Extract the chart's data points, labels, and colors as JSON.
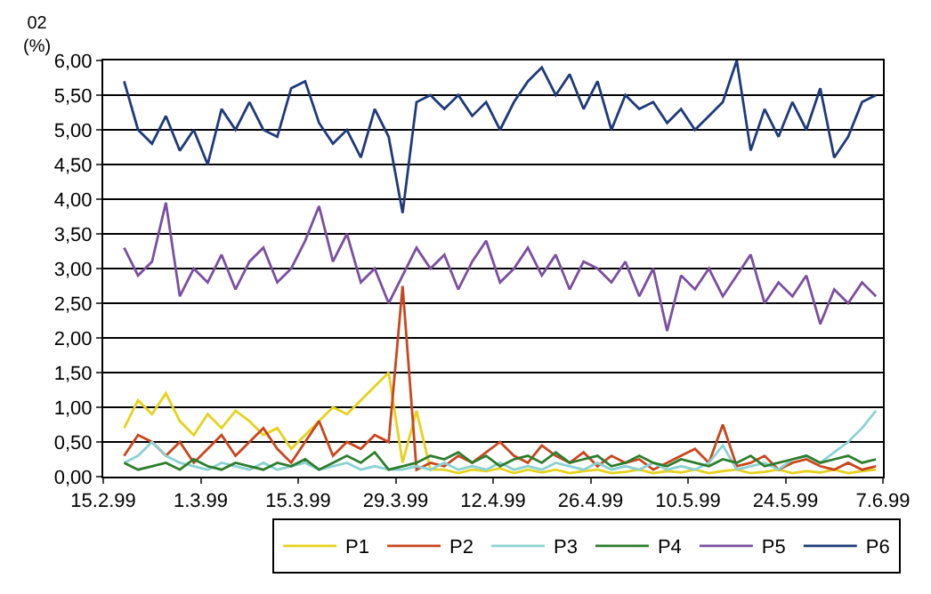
{
  "chart_data": {
    "type": "line",
    "ylabel": "02 (%)",
    "x": [
      "1999-02-18",
      "1999-02-20",
      "1999-02-22",
      "1999-02-24",
      "1999-02-26",
      "1999-02-28",
      "1999-03-02",
      "1999-03-04",
      "1999-03-06",
      "1999-03-08",
      "1999-03-10",
      "1999-03-12",
      "1999-03-14",
      "1999-03-16",
      "1999-03-18",
      "1999-03-20",
      "1999-03-22",
      "1999-03-24",
      "1999-03-26",
      "1999-03-28",
      "1999-03-30",
      "1999-04-01",
      "1999-04-03",
      "1999-04-05",
      "1999-04-07",
      "1999-04-09",
      "1999-04-11",
      "1999-04-13",
      "1999-04-15",
      "1999-04-17",
      "1999-04-19",
      "1999-04-21",
      "1999-04-23",
      "1999-04-25",
      "1999-04-27",
      "1999-04-29",
      "1999-05-01",
      "1999-05-03",
      "1999-05-05",
      "1999-05-07",
      "1999-05-09",
      "1999-05-11",
      "1999-05-13",
      "1999-05-15",
      "1999-05-17",
      "1999-05-19",
      "1999-05-21",
      "1999-05-23",
      "1999-05-25",
      "1999-05-27",
      "1999-05-29",
      "1999-05-31",
      "1999-06-02",
      "1999-06-04",
      "1999-06-06"
    ],
    "series": [
      {
        "name": "P1",
        "color": "#e6d21e",
        "values": [
          0.7,
          1.1,
          0.9,
          1.2,
          0.8,
          0.6,
          0.9,
          0.7,
          0.95,
          0.8,
          0.6,
          0.7,
          0.4,
          0.6,
          0.8,
          1.0,
          0.9,
          1.1,
          1.3,
          1.5,
          0.2,
          0.95,
          0.1,
          0.1,
          0.05,
          0.1,
          0.08,
          0.12,
          0.05,
          0.1,
          0.06,
          0.1,
          0.05,
          0.08,
          0.1,
          0.05,
          0.07,
          0.1,
          0.05,
          0.08,
          0.06,
          0.1,
          0.05,
          0.08,
          0.1,
          0.05,
          0.07,
          0.1,
          0.05,
          0.08,
          0.06,
          0.1,
          0.05,
          0.08,
          0.1
        ]
      },
      {
        "name": "P2",
        "color": "#c8461e",
        "values": [
          0.3,
          0.6,
          0.5,
          0.3,
          0.5,
          0.2,
          0.4,
          0.6,
          0.3,
          0.5,
          0.7,
          0.4,
          0.2,
          0.5,
          0.8,
          0.3,
          0.5,
          0.4,
          0.6,
          0.5,
          2.75,
          0.1,
          0.2,
          0.15,
          0.3,
          0.2,
          0.35,
          0.5,
          0.3,
          0.2,
          0.45,
          0.3,
          0.2,
          0.35,
          0.15,
          0.3,
          0.2,
          0.25,
          0.1,
          0.2,
          0.3,
          0.4,
          0.2,
          0.75,
          0.15,
          0.2,
          0.3,
          0.1,
          0.2,
          0.25,
          0.15,
          0.1,
          0.2,
          0.1,
          0.15
        ]
      },
      {
        "name": "P3",
        "color": "#8cd2d2",
        "values": [
          0.2,
          0.3,
          0.5,
          0.3,
          0.2,
          0.15,
          0.1,
          0.2,
          0.15,
          0.1,
          0.2,
          0.1,
          0.15,
          0.2,
          0.1,
          0.15,
          0.2,
          0.1,
          0.15,
          0.1,
          0.1,
          0.15,
          0.1,
          0.2,
          0.1,
          0.15,
          0.1,
          0.2,
          0.1,
          0.15,
          0.1,
          0.2,
          0.15,
          0.1,
          0.2,
          0.1,
          0.15,
          0.1,
          0.2,
          0.1,
          0.15,
          0.1,
          0.2,
          0.45,
          0.1,
          0.15,
          0.2,
          0.1,
          0.25,
          0.3,
          0.2,
          0.35,
          0.5,
          0.7,
          0.95
        ]
      },
      {
        "name": "P4",
        "color": "#2d7d2d",
        "values": [
          0.2,
          0.1,
          0.15,
          0.2,
          0.1,
          0.25,
          0.15,
          0.1,
          0.2,
          0.15,
          0.1,
          0.2,
          0.15,
          0.25,
          0.1,
          0.2,
          0.3,
          0.2,
          0.35,
          0.1,
          0.15,
          0.2,
          0.3,
          0.25,
          0.35,
          0.2,
          0.3,
          0.15,
          0.25,
          0.3,
          0.2,
          0.35,
          0.2,
          0.25,
          0.3,
          0.15,
          0.2,
          0.3,
          0.2,
          0.15,
          0.25,
          0.2,
          0.15,
          0.25,
          0.2,
          0.3,
          0.15,
          0.2,
          0.25,
          0.3,
          0.2,
          0.25,
          0.3,
          0.2,
          0.25
        ]
      },
      {
        "name": "P5",
        "color": "#7b4fa0",
        "values": [
          3.3,
          2.9,
          3.1,
          3.95,
          2.6,
          3.0,
          2.8,
          3.2,
          2.7,
          3.1,
          3.3,
          2.8,
          3.0,
          3.4,
          3.9,
          3.1,
          3.5,
          2.8,
          3.0,
          2.5,
          2.9,
          3.3,
          3.0,
          3.2,
          2.7,
          3.1,
          3.4,
          2.8,
          3.0,
          3.3,
          2.9,
          3.2,
          2.7,
          3.1,
          3.0,
          2.8,
          3.1,
          2.6,
          3.0,
          2.1,
          2.9,
          2.7,
          3.0,
          2.6,
          2.9,
          3.2,
          2.5,
          2.8,
          2.6,
          2.9,
          2.2,
          2.7,
          2.5,
          2.8,
          2.6
        ]
      },
      {
        "name": "P6",
        "color": "#1f3a7a",
        "values": [
          5.7,
          5.0,
          4.8,
          5.2,
          4.7,
          5.0,
          4.5,
          5.3,
          5.0,
          5.4,
          5.0,
          4.9,
          5.6,
          5.7,
          5.1,
          4.8,
          5.0,
          4.6,
          5.3,
          4.9,
          3.8,
          5.4,
          5.5,
          5.3,
          5.5,
          5.2,
          5.4,
          5.0,
          5.4,
          5.7,
          5.9,
          5.5,
          5.8,
          5.3,
          5.7,
          5.0,
          5.5,
          5.3,
          5.4,
          5.1,
          5.3,
          5.0,
          5.2,
          5.4,
          6.0,
          4.7,
          5.3,
          4.9,
          5.4,
          5.0,
          5.6,
          4.6,
          4.9,
          5.4,
          5.5
        ]
      }
    ],
    "xlim": [
      "1999-02-15",
      "1999-06-07"
    ],
    "xticks": [
      {
        "value": "1999-02-15",
        "label": "15.2.99"
      },
      {
        "value": "1999-03-01",
        "label": "1.3.99"
      },
      {
        "value": "1999-03-15",
        "label": "15.3.99"
      },
      {
        "value": "1999-03-29",
        "label": "29.3.99"
      },
      {
        "value": "1999-04-12",
        "label": "12.4.99"
      },
      {
        "value": "1999-04-26",
        "label": "26.4.99"
      },
      {
        "value": "1999-05-10",
        "label": "10.5.99"
      },
      {
        "value": "1999-05-24",
        "label": "24.5.99"
      },
      {
        "value": "1999-06-07",
        "label": "7.6.99"
      }
    ],
    "ylim": [
      0,
      6
    ],
    "yticks": [
      {
        "value": 0,
        "label": "0,00"
      },
      {
        "value": 0.5,
        "label": "0,50"
      },
      {
        "value": 1,
        "label": "1,00"
      },
      {
        "value": 1.5,
        "label": "1,50"
      },
      {
        "value": 2,
        "label": "2,00"
      },
      {
        "value": 2.5,
        "label": "2,50"
      },
      {
        "value": 3,
        "label": "3,00"
      },
      {
        "value": 3.5,
        "label": "3,50"
      },
      {
        "value": 4,
        "label": "4,00"
      },
      {
        "value": 4.5,
        "label": "4,50"
      },
      {
        "value": 5,
        "label": "5,00"
      },
      {
        "value": 5.5,
        "label": "5,50"
      },
      {
        "value": 6,
        "label": "6,00"
      }
    ],
    "grid": "y",
    "legend": "bottom",
    "marker": "none",
    "line_style": "solid"
  }
}
